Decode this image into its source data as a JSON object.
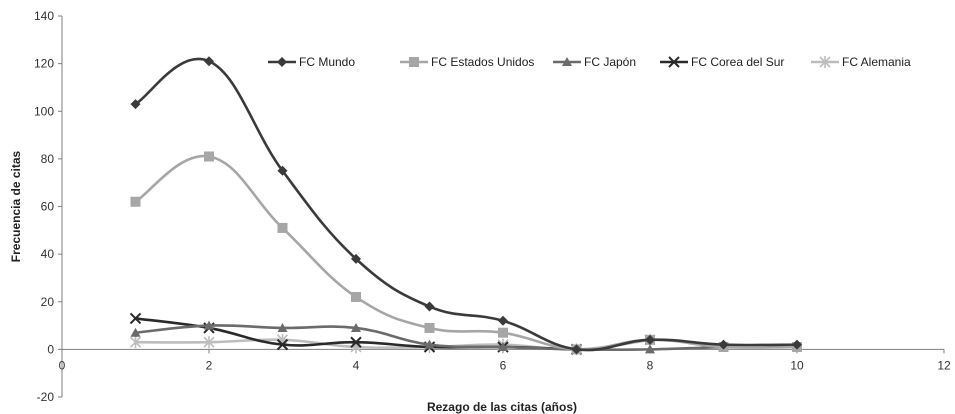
{
  "chart_data": {
    "type": "line",
    "title": "",
    "xlabel": "Rezago de las citas (años)",
    "ylabel": "Frecuencia de citas",
    "xlim": [
      0,
      12
    ],
    "ylim": [
      -20,
      140
    ],
    "xticks": [
      0,
      2,
      4,
      6,
      8,
      10,
      12
    ],
    "yticks": [
      -20,
      0,
      20,
      40,
      60,
      80,
      100,
      120,
      140
    ],
    "grid": false,
    "legend_position": "top-right",
    "x": [
      1,
      2,
      3,
      4,
      5,
      6,
      7,
      8,
      9,
      10
    ],
    "series": [
      {
        "name": "FC Mundo",
        "marker": "diamond",
        "color": "#3a3a3a",
        "values": [
          103,
          121,
          75,
          38,
          18,
          12,
          0,
          4,
          2,
          2
        ]
      },
      {
        "name": "FC Estados Unidos",
        "marker": "square",
        "color": "#a6a6a6",
        "values": [
          62,
          81,
          51,
          22,
          9,
          7,
          0,
          4,
          1,
          1
        ]
      },
      {
        "name": "FC Japón",
        "marker": "triangle",
        "color": "#6b6b6b",
        "values": [
          7,
          10,
          9,
          9,
          2,
          1,
          0,
          0,
          1,
          null
        ]
      },
      {
        "name": "FC Corea del Sur",
        "marker": "x",
        "color": "#2a2a2a",
        "values": [
          13,
          9,
          2,
          3,
          1,
          1,
          0,
          null,
          null,
          null
        ]
      },
      {
        "name": "FC Alemania",
        "marker": "star",
        "color": "#bdbdbd",
        "values": [
          3,
          3,
          4,
          1,
          1,
          2,
          0,
          4,
          null,
          null
        ]
      }
    ]
  }
}
